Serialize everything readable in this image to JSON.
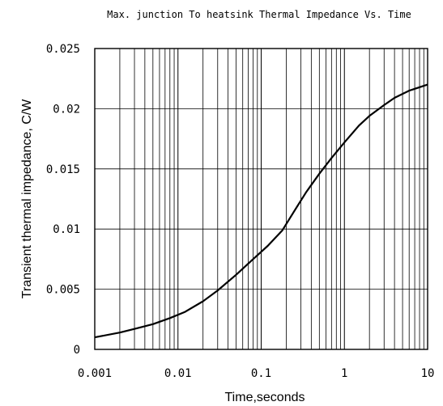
{
  "chart_data": {
    "type": "line",
    "title": "Max. junction To heatsink Thermal Impedance Vs. Time",
    "xlabel": "Time,seconds",
    "ylabel": "Transient thermal impedance, C/W",
    "x_scale": "log",
    "xlim": [
      0.001,
      10
    ],
    "ylim": [
      0,
      0.025
    ],
    "grid": true,
    "x_ticks": [
      "0.001",
      "0.01",
      "0.1",
      "1",
      "10"
    ],
    "y_ticks": [
      "0",
      "0.005",
      "0.01",
      "0.015",
      "0.02",
      "0.025"
    ],
    "series": [
      {
        "x": [
          0.001,
          0.002,
          0.003,
          0.005,
          0.008,
          0.012,
          0.02,
          0.03,
          0.05,
          0.08,
          0.12,
          0.18,
          0.25,
          0.35,
          0.5,
          0.7,
          1.0,
          1.5,
          2.0,
          3.0,
          4.0,
          6.0,
          10.0
        ],
        "y": [
          0.001,
          0.0014,
          0.0017,
          0.0021,
          0.0026,
          0.0031,
          0.004,
          0.0049,
          0.0062,
          0.0075,
          0.0086,
          0.0099,
          0.0115,
          0.0131,
          0.0146,
          0.0159,
          0.0172,
          0.0186,
          0.0194,
          0.0203,
          0.0209,
          0.0215,
          0.022
        ]
      }
    ],
    "colors": {
      "line": "#000000",
      "grid": "#000000"
    }
  }
}
